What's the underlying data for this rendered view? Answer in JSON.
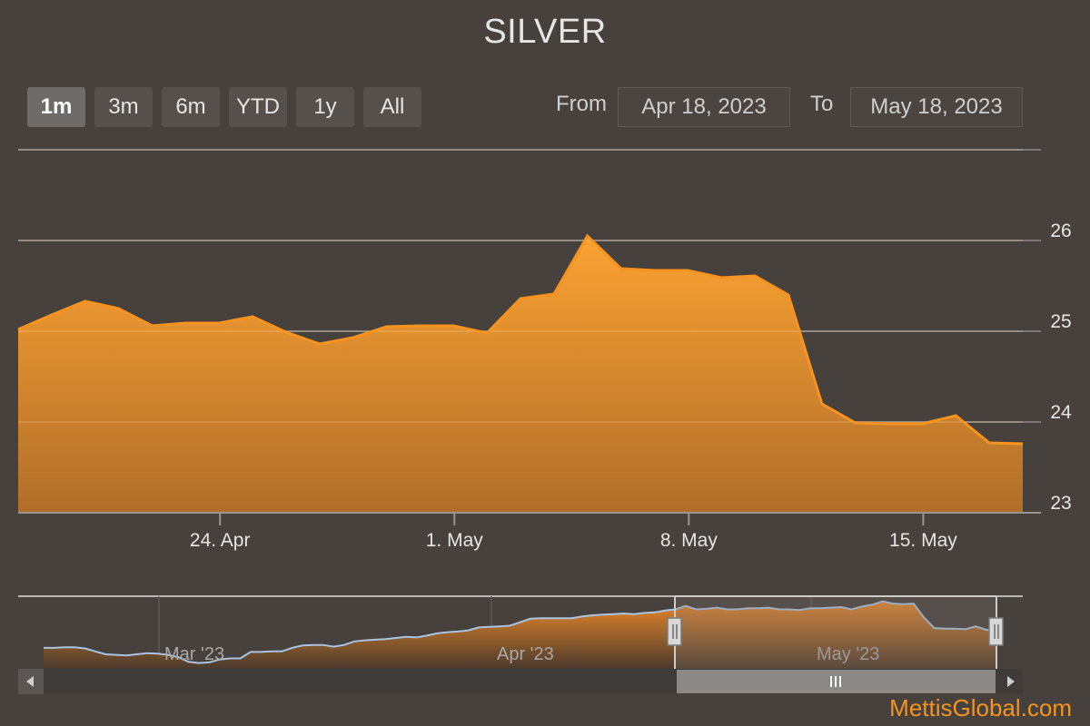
{
  "title": "SILVER",
  "range_selector": {
    "buttons": [
      "1m",
      "3m",
      "6m",
      "YTD",
      "1y",
      "All"
    ],
    "active": "1m"
  },
  "date_range": {
    "from_label": "From",
    "from": "Apr 18, 2023",
    "to_label": "To",
    "to": "May 18, 2023"
  },
  "brand": "MettisGlobal.com",
  "colors": {
    "background": "#46413d",
    "series": "#f5941f",
    "navigator_line": "#a9c4e2"
  },
  "chart_data": {
    "type": "area",
    "title": "SILVER",
    "ylim": [
      23,
      27
    ],
    "y_ticks": [
      23,
      24,
      25,
      26
    ],
    "x_tick_labels": [
      "24. Apr",
      "1. May",
      "8. May",
      "15. May"
    ],
    "grid": true,
    "y_axis_position": "right",
    "series": [
      {
        "x": [
          "2023-04-18",
          "2023-04-19",
          "2023-04-20",
          "2023-04-21",
          "2023-04-22",
          "2023-04-23",
          "2023-04-24",
          "2023-04-25",
          "2023-04-26",
          "2023-04-27",
          "2023-04-28",
          "2023-04-29",
          "2023-04-30",
          "2023-05-01",
          "2023-05-02",
          "2023-05-03",
          "2023-05-04",
          "2023-05-05",
          "2023-05-06",
          "2023-05-07",
          "2023-05-08",
          "2023-05-09",
          "2023-05-10",
          "2023-05-11",
          "2023-05-12",
          "2023-05-13",
          "2023-05-14",
          "2023-05-15",
          "2023-05-16",
          "2023-05-17",
          "2023-05-18"
        ],
        "values": [
          25.02,
          25.18,
          25.33,
          25.25,
          25.06,
          25.09,
          25.09,
          25.16,
          24.99,
          24.86,
          24.93,
          25.05,
          25.06,
          25.06,
          24.98,
          25.36,
          25.41,
          26.05,
          25.69,
          25.67,
          25.67,
          25.59,
          25.61,
          25.4,
          24.2,
          23.99,
          23.98,
          23.98,
          24.07,
          23.77,
          23.76
        ]
      }
    ],
    "navigator": {
      "x_tick_labels": [
        "Mar '23",
        "Apr '23",
        "May '23"
      ],
      "values": [
        23.86,
        23.86,
        23.87,
        23.87,
        23.85,
        23.8,
        23.75,
        23.74,
        23.73,
        23.75,
        23.77,
        23.76,
        23.74,
        23.7,
        23.62,
        23.6,
        23.61,
        23.66,
        23.68,
        23.68,
        23.79,
        23.79,
        23.8,
        23.8,
        23.86,
        23.9,
        23.91,
        23.91,
        23.88,
        23.91,
        23.97,
        23.99,
        24.0,
        24.01,
        24.03,
        24.05,
        24.04,
        24.07,
        24.11,
        24.13,
        24.14,
        24.16,
        24.21,
        24.22,
        24.23,
        24.24,
        24.3,
        24.36,
        24.37,
        24.37,
        24.37,
        24.37,
        24.4,
        24.42,
        24.43,
        24.44,
        24.45,
        24.44,
        24.46,
        24.47,
        24.5,
        24.52,
        24.58,
        24.52,
        24.53,
        24.55,
        24.52,
        24.52,
        24.54,
        24.54,
        24.55,
        24.52,
        24.52,
        24.51,
        24.54,
        24.54,
        24.55,
        24.56,
        24.52,
        24.57,
        24.6,
        24.66,
        24.62,
        24.61,
        24.62,
        24.38,
        24.2,
        24.19,
        24.19,
        24.18,
        24.23,
        24.17,
        24.16
      ],
      "selected_from": "Apr 18, 2023",
      "selected_to": "May 18, 2023"
    }
  }
}
